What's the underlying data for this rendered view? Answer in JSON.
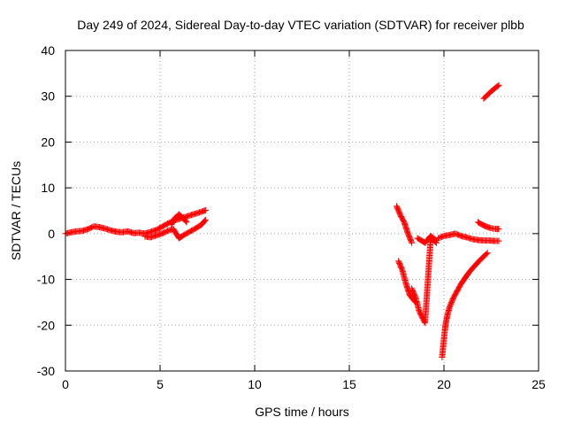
{
  "chart_data": {
    "type": "scatter",
    "title": "Day 249 of 2024, Sidereal Day-to-day VTEC variation (SDTVAR) for receiver plbb",
    "xlabel": "GPS time / hours",
    "ylabel": "SDTVAR / TECUs",
    "xlim": [
      0,
      25
    ],
    "ylim": [
      -30,
      40
    ],
    "xticks": [
      0,
      5,
      10,
      15,
      20,
      25
    ],
    "yticks": [
      -30,
      -20,
      -10,
      0,
      10,
      20,
      30,
      40
    ],
    "grid": true,
    "marker": "+",
    "marker_color": "#ff0000",
    "series": [
      {
        "name": "SDTVAR",
        "segments": [
          {
            "x": [
              0.0,
              0.3,
              0.6,
              0.9,
              1.2,
              1.5,
              1.8,
              2.1,
              2.4,
              2.7,
              3.0,
              3.3,
              3.6,
              3.9,
              4.2,
              4.5,
              4.8,
              5.1,
              5.4,
              5.7,
              6.0,
              6.3,
              6.6,
              6.9,
              7.2,
              7.4
            ],
            "y": [
              0.0,
              0.3,
              0.5,
              0.6,
              1.0,
              1.6,
              1.4,
              1.1,
              0.7,
              0.4,
              0.3,
              0.5,
              0.1,
              0.2,
              0.0,
              0.4,
              0.8,
              1.5,
              2.2,
              2.8,
              3.2,
              3.6,
              4.0,
              4.4,
              4.8,
              5.1
            ]
          },
          {
            "x": [
              4.2,
              4.5,
              4.8,
              5.1,
              5.4,
              5.7,
              6.0,
              6.3,
              6.6,
              6.9,
              7.2,
              7.4
            ],
            "y": [
              -0.6,
              -0.8,
              -0.4,
              0.0,
              0.6,
              1.0,
              -1.0,
              -0.2,
              0.5,
              1.2,
              2.0,
              3.0
            ]
          },
          {
            "x": [
              5.6,
              5.8,
              6.0,
              6.2,
              6.4
            ],
            "y": [
              2.0,
              3.5,
              4.2,
              3.5,
              2.5
            ]
          },
          {
            "x": [
              17.5,
              17.7,
              17.9,
              18.1,
              18.3
            ],
            "y": [
              6.0,
              4.0,
              2.5,
              0.0,
              -2.0
            ]
          },
          {
            "x": [
              17.6,
              17.8,
              18.0,
              18.2,
              18.5
            ],
            "y": [
              -6.0,
              -8.0,
              -11.0,
              -13.5,
              -15.0
            ]
          },
          {
            "x": [
              18.3,
              18.5,
              18.7,
              19.0,
              19.3,
              19.6
            ],
            "y": [
              -12.0,
              -14.0,
              -17.0,
              -19.5,
              -1.0,
              -2.0
            ]
          },
          {
            "x": [
              18.6,
              18.8,
              19.0,
              19.3,
              19.6
            ],
            "y": [
              -1.0,
              -1.5,
              -2.0,
              -0.5,
              -1.5
            ]
          },
          {
            "x": [
              19.9,
              19.95,
              20.0,
              20.05,
              20.1,
              20.2,
              20.3,
              20.5,
              20.7,
              20.9,
              21.1,
              21.3,
              21.5,
              21.7,
              21.9,
              22.1,
              22.3
            ],
            "y": [
              -27.0,
              -25.0,
              -23.0,
              -21.0,
              -19.5,
              -17.5,
              -16.0,
              -14.0,
              -12.5,
              -11.0,
              -9.8,
              -8.6,
              -7.6,
              -6.7,
              -5.8,
              -5.0,
              -4.2
            ]
          },
          {
            "x": [
              19.7,
              20.0,
              20.3,
              20.6,
              20.9,
              21.2,
              21.5,
              21.8,
              22.1,
              22.4,
              22.7,
              22.9
            ],
            "y": [
              -1.0,
              -0.5,
              -0.3,
              0.0,
              -0.5,
              -0.8,
              -1.2,
              -1.4,
              -1.5,
              -1.5,
              -1.6,
              -1.6
            ]
          },
          {
            "x": [
              21.8,
              22.0,
              22.2,
              22.4,
              22.6,
              22.8,
              22.9
            ],
            "y": [
              2.5,
              2.0,
              1.6,
              1.3,
              1.1,
              1.0,
              1.0
            ]
          },
          {
            "x": [
              22.1,
              22.2,
              22.3,
              22.4,
              22.5,
              22.6,
              22.7,
              22.8,
              22.9
            ],
            "y": [
              29.5,
              29.9,
              30.3,
              30.7,
              31.1,
              31.4,
              31.8,
              32.1,
              32.4
            ]
          }
        ]
      }
    ]
  }
}
